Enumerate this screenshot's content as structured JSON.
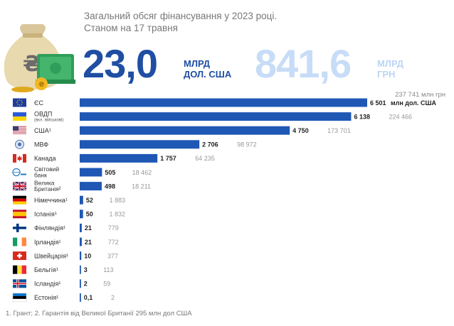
{
  "header": {
    "title": "Загальний обсяг фінансування у 2023 році.",
    "subtitle": "Станом на 17 травня"
  },
  "totals": {
    "usd_value": "23,0",
    "usd_unit_line1": "МЛРД",
    "usd_unit_line2": "ДОЛ. США",
    "uah_value": "841,6",
    "uah_unit_line1": "МЛРД",
    "uah_unit_line2": "ГРН"
  },
  "uah_column_header": "237 741 млн грн",
  "usd_unit_label": "млн дол. США",
  "footnote": "1. Грант; 2. Гарантія від Великої Британії 295 млн дол США",
  "colors": {
    "bar": "#1f57b5",
    "accent": "#1f4ea3",
    "light_accent": "#c7dcf7"
  },
  "chart_data": {
    "type": "bar",
    "orientation": "horizontal",
    "title": "Загальний обсяг фінансування у 2023 році.",
    "unit_usd": "млн дол. США",
    "unit_uah": "млн грн",
    "categories": [
      "ЄС",
      "ОВДП (вкл. військові)",
      "США¹",
      "МВФ",
      "Канада",
      "Світовий банк",
      "Велика Британія²",
      "Німеччина¹",
      "Іспанія¹",
      "Фінляндія¹",
      "Ірландія¹",
      "Швейцарія¹",
      "Бельгія¹",
      "Ісландія¹",
      "Естонія¹"
    ],
    "rows": [
      {
        "label": "ЄС",
        "sublabel": "",
        "flag": "eu-flag",
        "value_label": "6 501",
        "value": 6501,
        "uah_label": "237 741 млн грн"
      },
      {
        "label": "ОВДП",
        "sublabel": "(вкл. військові)",
        "flag": "ukraine-flag",
        "value_label": "6 138",
        "value": 6138,
        "uah_label": "224 466"
      },
      {
        "label": "США¹",
        "sublabel": "",
        "flag": "usa-flag",
        "value_label": "4 750",
        "value": 4750,
        "uah_label": "173 701"
      },
      {
        "label": "МВФ",
        "sublabel": "",
        "flag": "imf-logo",
        "value_label": "2 706",
        "value": 2706,
        "uah_label": "98 972"
      },
      {
        "label": "Канада",
        "sublabel": "",
        "flag": "canada-flag",
        "value_label": "1 757",
        "value": 1757,
        "uah_label": "64 235"
      },
      {
        "label": "Світовий",
        "label2": "банк",
        "sublabel": "",
        "flag": "world-bank-logo",
        "value_label": "505",
        "value": 505,
        "uah_label": "18 462"
      },
      {
        "label": "Велика",
        "label2": "Британія²",
        "sublabel": "",
        "flag": "uk-flag",
        "value_label": "498",
        "value": 498,
        "uah_label": "18 211"
      },
      {
        "label": "Німеччина¹",
        "sublabel": "",
        "flag": "germany-flag",
        "value_label": "52",
        "value": 52,
        "uah_label": "1 883"
      },
      {
        "label": "Іспанія¹",
        "sublabel": "",
        "flag": "spain-flag",
        "value_label": "50",
        "value": 50,
        "uah_label": "1 832"
      },
      {
        "label": "Фінляндія¹",
        "sublabel": "",
        "flag": "finland-flag",
        "value_label": "21",
        "value": 21,
        "uah_label": "779"
      },
      {
        "label": "Ірландія¹",
        "sublabel": "",
        "flag": "ireland-flag",
        "value_label": "21",
        "value": 21,
        "uah_label": "772"
      },
      {
        "label": "Швейцарія¹",
        "sublabel": "",
        "flag": "switzerland-flag",
        "value_label": "10",
        "value": 10,
        "uah_label": "377"
      },
      {
        "label": "Бельгія¹",
        "sublabel": "",
        "flag": "belgium-flag",
        "value_label": "3",
        "value": 3,
        "uah_label": "113"
      },
      {
        "label": "Ісландія¹",
        "sublabel": "",
        "flag": "iceland-flag",
        "value_label": "2",
        "value": 2,
        "uah_label": "59"
      },
      {
        "label": "Естонія¹",
        "sublabel": "",
        "flag": "estonia-flag",
        "value_label": "0,1",
        "value": 0.1,
        "uah_label": "2"
      }
    ]
  }
}
